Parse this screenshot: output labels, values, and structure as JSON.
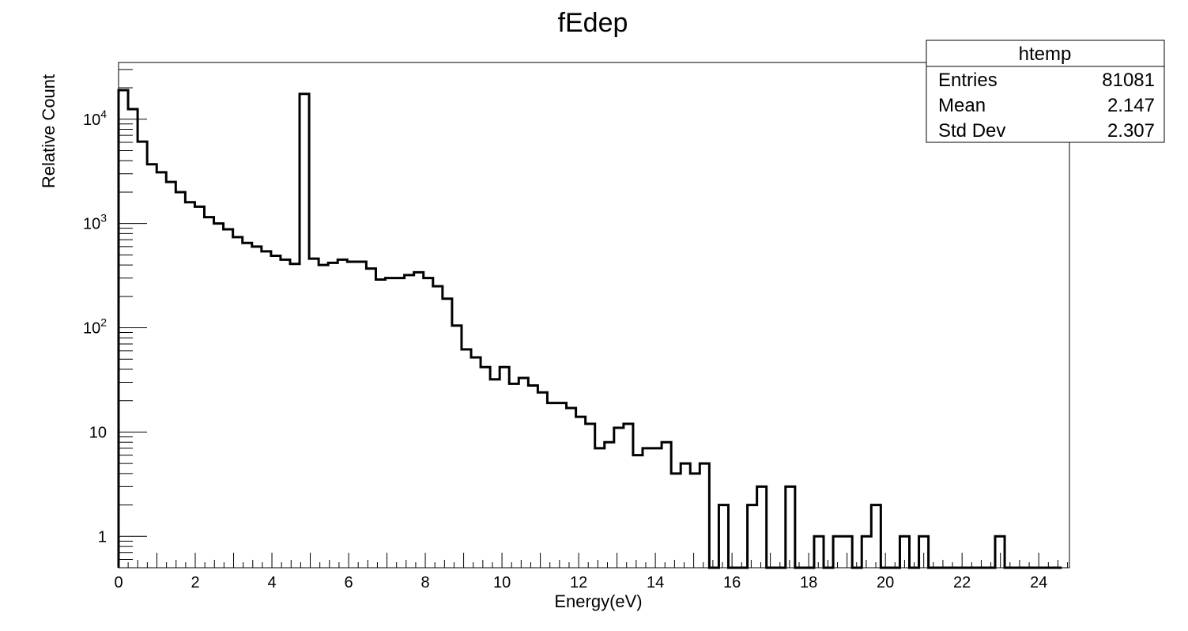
{
  "chart_data": {
    "type": "histogram",
    "title": "fEdep",
    "xlabel": "Energy(eV)",
    "ylabel": "Relative Count",
    "x_range": [
      0,
      24.8
    ],
    "y_scale": "log",
    "ylim": [
      0.5,
      35000
    ],
    "grid": false,
    "legend": "none",
    "line_color": "#000000",
    "bin_width": 0.2485,
    "x_ticks": [
      "0",
      "2",
      "4",
      "6",
      "8",
      "10",
      "12",
      "14",
      "16",
      "18",
      "20",
      "22",
      "24"
    ],
    "y_ticks": [
      {
        "value": 1,
        "base": "1",
        "exp": ""
      },
      {
        "value": 10,
        "base": "10",
        "exp": ""
      },
      {
        "value": 100,
        "base": "10",
        "exp": "2"
      },
      {
        "value": 1000,
        "base": "10",
        "exp": "3"
      },
      {
        "value": 10000,
        "base": "10",
        "exp": "4"
      }
    ],
    "values": [
      19000,
      12500,
      6100,
      3700,
      3100,
      2500,
      2000,
      1600,
      1450,
      1150,
      1000,
      880,
      740,
      650,
      600,
      540,
      490,
      450,
      410,
      17500,
      460,
      400,
      420,
      450,
      430,
      430,
      370,
      290,
      300,
      300,
      320,
      340,
      300,
      250,
      190,
      105,
      62,
      52,
      42,
      32,
      42,
      29,
      33,
      28,
      24,
      19,
      19,
      17,
      14,
      12,
      7,
      8,
      11,
      12,
      6,
      7,
      7,
      8,
      4,
      5,
      4,
      5,
      0,
      2,
      0,
      0,
      2,
      3,
      0,
      0,
      3,
      0,
      0,
      1,
      0,
      1,
      1,
      0,
      1,
      2,
      0,
      0,
      1,
      0,
      1,
      0,
      0,
      0,
      0,
      0,
      0,
      0,
      1,
      0,
      0,
      0,
      0,
      0,
      0
    ]
  },
  "stats_box": {
    "name": "htemp",
    "rows": [
      {
        "label": "Entries",
        "value": "81081"
      },
      {
        "label": "Mean",
        "value": "2.147"
      },
      {
        "label": "Std Dev",
        "value": "2.307"
      }
    ]
  }
}
